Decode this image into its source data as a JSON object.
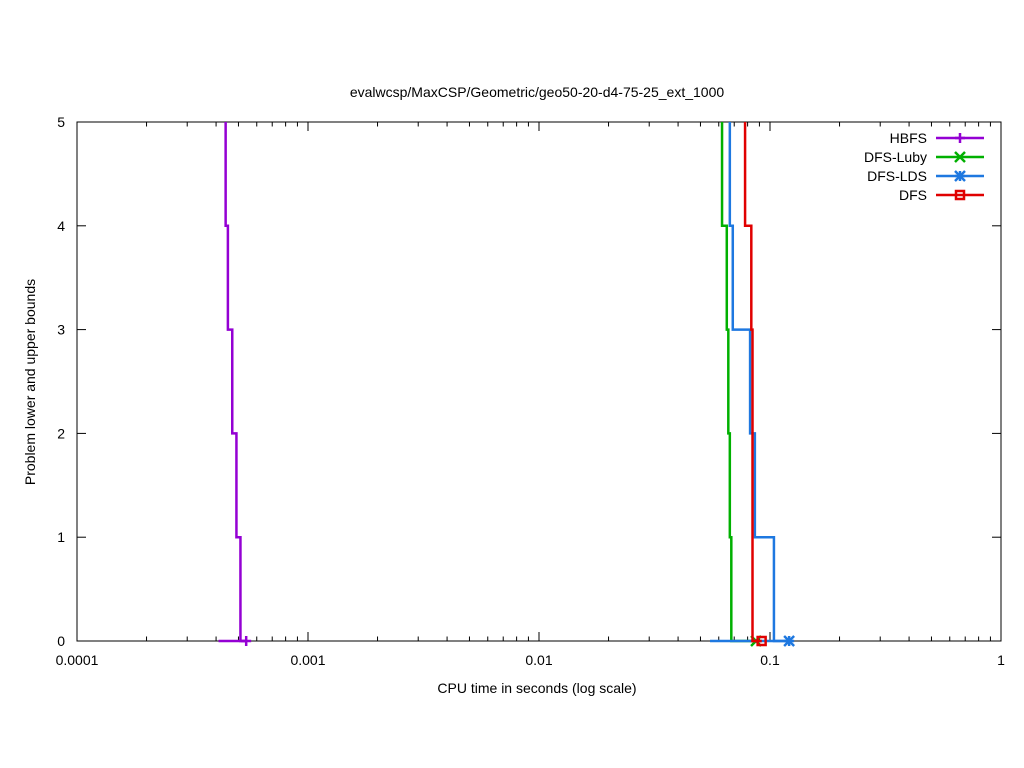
{
  "chart_data": {
    "type": "line",
    "title": "evalwcsp/MaxCSP/Geometric/geo50-20-d4-75-25_ext_1000",
    "xlabel": "CPU time in seconds (log scale)",
    "ylabel": "Problem lower and upper bounds",
    "xscale": "log",
    "xlim": [
      0.0001,
      1
    ],
    "ylim": [
      0,
      5
    ],
    "x_ticks": [
      {
        "value": 0.0001,
        "label": "0.0001"
      },
      {
        "value": 0.001,
        "label": "0.001"
      },
      {
        "value": 0.01,
        "label": "0.01"
      },
      {
        "value": 0.1,
        "label": "0.1"
      },
      {
        "value": 1,
        "label": "1"
      }
    ],
    "y_ticks": [
      {
        "value": 0,
        "label": "0"
      },
      {
        "value": 1,
        "label": "1"
      },
      {
        "value": 2,
        "label": "2"
      },
      {
        "value": 3,
        "label": "3"
      },
      {
        "value": 4,
        "label": "4"
      },
      {
        "value": 5,
        "label": "5"
      }
    ],
    "grid": false,
    "legend_position": "top-right",
    "series": [
      {
        "name": "HBFS",
        "color": "#9400d3",
        "marker": "plus",
        "upper": [
          [
            0.00044,
            5
          ],
          [
            0.00045,
            4
          ],
          [
            0.00047,
            3
          ],
          [
            0.00049,
            2
          ],
          [
            0.00051,
            1
          ],
          [
            0.00054,
            0
          ]
        ],
        "lower": [
          [
            0.00041,
            0
          ],
          [
            0.00054,
            0
          ]
        ],
        "end_point": [
          0.00054,
          0
        ]
      },
      {
        "name": "DFS-Luby",
        "color": "#00b000",
        "marker": "x",
        "upper": [
          [
            0.062,
            5
          ],
          [
            0.065,
            4
          ],
          [
            0.066,
            3
          ],
          [
            0.067,
            2
          ],
          [
            0.068,
            1
          ],
          [
            0.087,
            0
          ]
        ],
        "lower": [
          [
            0.087,
            0
          ]
        ],
        "end_point": [
          0.087,
          0
        ]
      },
      {
        "name": "DFS-LDS",
        "color": "#1e78e0",
        "marker": "star",
        "upper": [
          [
            0.067,
            5
          ],
          [
            0.069,
            4
          ],
          [
            0.082,
            3
          ],
          [
            0.086,
            2
          ],
          [
            0.104,
            1
          ],
          [
            0.121,
            0
          ]
        ],
        "lower": [
          [
            0.055,
            0
          ],
          [
            0.121,
            0
          ]
        ],
        "end_point": [
          0.121,
          0
        ]
      },
      {
        "name": "DFS",
        "color": "#e00000",
        "marker": "square",
        "upper": [
          [
            0.078,
            5
          ],
          [
            0.083,
            4
          ],
          [
            0.084,
            3
          ],
          [
            0.084,
            2
          ],
          [
            0.084,
            1
          ],
          [
            0.092,
            0
          ]
        ],
        "lower": [
          [
            0.083,
            0
          ],
          [
            0.092,
            0
          ]
        ],
        "end_point": [
          0.092,
          0
        ]
      }
    ]
  }
}
